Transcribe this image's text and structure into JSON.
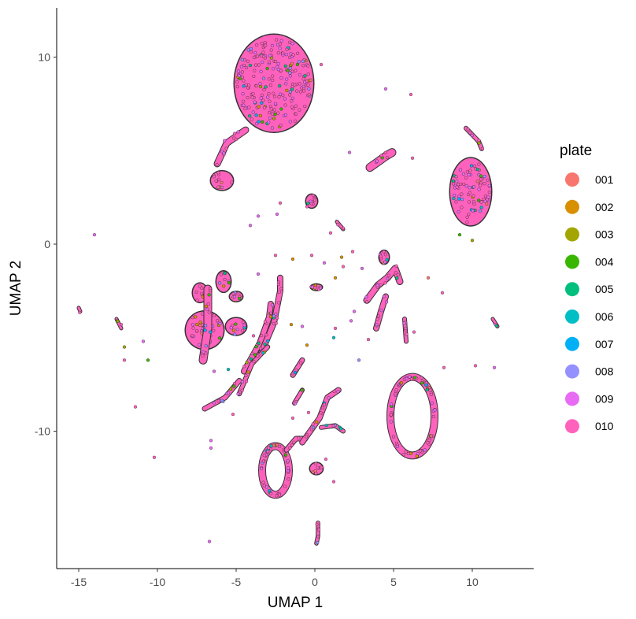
{
  "chart_data": {
    "type": "scatter",
    "title": "",
    "xlabel": "UMAP 1",
    "ylabel": "UMAP 2",
    "xlim": [
      -16.4,
      13.9
    ],
    "ylim": [
      -17.2,
      12.5
    ],
    "x_ticks": [
      -15,
      -10,
      -5,
      0,
      5,
      10
    ],
    "y_ticks": [
      -10,
      0,
      10
    ],
    "x_tick_labels": [
      "-15",
      "-10",
      "-5",
      "0",
      "5",
      "10"
    ],
    "y_tick_labels": [
      "-10",
      "0",
      "10"
    ],
    "grid": false,
    "legend": {
      "title": "plate",
      "placement": "right",
      "entries": [
        {
          "name": "001",
          "color": "#F8766D"
        },
        {
          "name": "002",
          "color": "#D89000"
        },
        {
          "name": "003",
          "color": "#A3A500"
        },
        {
          "name": "004",
          "color": "#39B600"
        },
        {
          "name": "005",
          "color": "#00BF7D"
        },
        {
          "name": "006",
          "color": "#00BFC4"
        },
        {
          "name": "007",
          "color": "#00B0F6"
        },
        {
          "name": "008",
          "color": "#9590FF"
        },
        {
          "name": "009",
          "color": "#E76BF3"
        },
        {
          "name": "010",
          "color": "#FF62BC"
        }
      ]
    },
    "clusters": [
      {
        "shape": "blob",
        "cx": -2.6,
        "cy": 8.6,
        "rx": 2.5,
        "ry": 2.6
      },
      {
        "shape": "blob",
        "cx": -5.9,
        "cy": 3.4,
        "rx": 0.7,
        "ry": 0.5
      },
      {
        "shape": "line",
        "points": [
          [
            -6.2,
            4.3
          ],
          [
            -5.6,
            5.4
          ],
          [
            -4.4,
            6.1
          ]
        ],
        "width": 0.35
      },
      {
        "shape": "blob",
        "cx": -0.2,
        "cy": 2.3,
        "rx": 0.35,
        "ry": 0.35
      },
      {
        "shape": "line",
        "points": [
          [
            3.5,
            4.1
          ],
          [
            4.5,
            4.7
          ],
          [
            4.9,
            4.9
          ]
        ],
        "width": 0.45
      },
      {
        "shape": "blob",
        "cx": 9.9,
        "cy": 2.8,
        "rx": 1.3,
        "ry": 1.8
      },
      {
        "shape": "line",
        "points": [
          [
            9.6,
            6.2
          ],
          [
            10.4,
            5.5
          ],
          [
            10.6,
            5.1
          ]
        ],
        "width": 0.2
      },
      {
        "shape": "blob",
        "cx": -7.3,
        "cy": -2.6,
        "rx": 0.45,
        "ry": 0.5
      },
      {
        "shape": "blob",
        "cx": -7.0,
        "cy": -4.6,
        "rx": 1.2,
        "ry": 1.0
      },
      {
        "shape": "blob",
        "cx": -5.0,
        "cy": -4.4,
        "rx": 0.65,
        "ry": 0.45
      },
      {
        "shape": "line",
        "points": [
          [
            -6.8,
            -2.4
          ],
          [
            -6.8,
            -4.5
          ],
          [
            -7.1,
            -6.2
          ]
        ],
        "width": 0.45
      },
      {
        "shape": "blob",
        "cx": -5.8,
        "cy": -2.0,
        "rx": 0.45,
        "ry": 0.55
      },
      {
        "shape": "blob",
        "cx": -5.0,
        "cy": -2.8,
        "rx": 0.4,
        "ry": 0.25
      },
      {
        "shape": "line",
        "points": [
          [
            -7.0,
            -8.8
          ],
          [
            -5.7,
            -8.2
          ],
          [
            -4.8,
            -7.3
          ]
        ],
        "width": 0.25
      },
      {
        "shape": "line",
        "points": [
          [
            -4.5,
            -6.8
          ],
          [
            -3.5,
            -5.3
          ],
          [
            -2.9,
            -3.9
          ],
          [
            -2.8,
            -3.2
          ]
        ],
        "width": 0.3
      },
      {
        "shape": "line",
        "points": [
          [
            -3.4,
            -5.8
          ],
          [
            -2.6,
            -4.2
          ],
          [
            -2.2,
            -2.5
          ],
          [
            -2.2,
            -1.8
          ]
        ],
        "width": 0.3
      },
      {
        "shape": "line",
        "points": [
          [
            -4.8,
            -8.0
          ],
          [
            -4.0,
            -6.4
          ],
          [
            -3.0,
            -5.5
          ]
        ],
        "width": 0.22
      },
      {
        "shape": "line",
        "points": [
          [
            -1.4,
            -7.0
          ],
          [
            -0.8,
            -6.2
          ]
        ],
        "width": 0.25
      },
      {
        "shape": "line",
        "points": [
          [
            -1.3,
            -8.5
          ],
          [
            -0.8,
            -7.8
          ]
        ],
        "width": 0.2
      },
      {
        "shape": "line",
        "points": [
          [
            3.3,
            -3.0
          ],
          [
            4.0,
            -2.2
          ],
          [
            4.6,
            -1.8
          ],
          [
            5.1,
            -1.3
          ],
          [
            5.4,
            -2.0
          ]
        ],
        "width": 0.35
      },
      {
        "shape": "line",
        "points": [
          [
            3.9,
            -4.5
          ],
          [
            4.2,
            -3.6
          ],
          [
            4.5,
            -2.8
          ]
        ],
        "width": 0.3
      },
      {
        "shape": "blob",
        "cx": 4.4,
        "cy": -0.7,
        "rx": 0.3,
        "ry": 0.35
      },
      {
        "shape": "line",
        "points": [
          [
            5.7,
            -4.0
          ],
          [
            5.8,
            -5.2
          ]
        ],
        "width": 0.2
      },
      {
        "shape": "ring",
        "cx": 6.2,
        "cy": -9.2,
        "rx": 1.4,
        "ry": 2.1
      },
      {
        "shape": "ring",
        "cx": -2.5,
        "cy": -12.1,
        "rx": 0.85,
        "ry": 1.3
      },
      {
        "shape": "line",
        "points": [
          [
            -1.8,
            -11.0
          ],
          [
            -1.2,
            -10.4
          ],
          [
            -0.6,
            -10.4
          ]
        ],
        "width": 0.25
      },
      {
        "shape": "line",
        "points": [
          [
            -0.8,
            -10.6
          ],
          [
            0.3,
            -9.3
          ],
          [
            0.8,
            -8.2
          ],
          [
            1.5,
            -7.8
          ]
        ],
        "width": 0.28
      },
      {
        "shape": "line",
        "points": [
          [
            0.4,
            -9.8
          ],
          [
            1.3,
            -9.7
          ],
          [
            1.8,
            -10.0
          ]
        ],
        "width": 0.2
      },
      {
        "shape": "blob",
        "cx": 0.1,
        "cy": -12.0,
        "rx": 0.4,
        "ry": 0.3
      },
      {
        "shape": "line",
        "points": [
          [
            0.2,
            -14.9
          ],
          [
            0.2,
            -15.6
          ],
          [
            0.1,
            -16.0
          ]
        ],
        "width": 0.18
      },
      {
        "shape": "blob",
        "cx": 0.1,
        "cy": -2.3,
        "rx": 0.35,
        "ry": 0.15
      },
      {
        "shape": "line",
        "points": [
          [
            1.4,
            1.2
          ],
          [
            1.8,
            0.8
          ]
        ],
        "width": 0.12
      },
      {
        "shape": "line",
        "points": [
          [
            -12.6,
            -4.0
          ],
          [
            -12.3,
            -4.5
          ]
        ],
        "width": 0.12
      },
      {
        "shape": "line",
        "points": [
          [
            11.3,
            -4.0
          ],
          [
            11.6,
            -4.4
          ]
        ],
        "width": 0.12
      },
      {
        "shape": "line",
        "points": [
          [
            -15.0,
            -3.4
          ],
          [
            -14.9,
            -3.6
          ]
        ],
        "width": 0.1
      }
    ],
    "outlier_points": [
      [
        -14.0,
        0.5
      ],
      [
        -12.3,
        -4.3
      ],
      [
        -12.1,
        -5.5
      ],
      [
        -12.1,
        -6.2
      ],
      [
        -11.4,
        -8.7
      ],
      [
        -10.9,
        -5.2
      ],
      [
        -10.2,
        -11.4
      ],
      [
        -10.6,
        -6.2
      ],
      [
        -6.6,
        -10.5
      ],
      [
        -6.6,
        -10.9
      ],
      [
        -6.7,
        -15.9
      ],
      [
        -6.4,
        -6.8
      ],
      [
        -5.5,
        -6.7
      ],
      [
        -1.1,
        9.6
      ],
      [
        0.4,
        9.6
      ],
      [
        4.5,
        8.3
      ],
      [
        6.1,
        8.0
      ],
      [
        2.2,
        4.9
      ],
      [
        6.2,
        4.6
      ],
      [
        -2.2,
        2.2
      ],
      [
        -2.4,
        1.6
      ],
      [
        -0.5,
        2.0
      ],
      [
        -3.6,
        1.5
      ],
      [
        -4.1,
        1.0
      ],
      [
        10.0,
        0.2
      ],
      [
        9.2,
        0.5
      ],
      [
        1.7,
        -0.7
      ],
      [
        2.4,
        -0.4
      ],
      [
        3.0,
        -1.3
      ],
      [
        1.3,
        -1.8
      ],
      [
        1.8,
        -1.2
      ],
      [
        -3.6,
        -1.6
      ],
      [
        -2.5,
        -0.6
      ],
      [
        -3.9,
        -4.9
      ],
      [
        -1.5,
        -4.3
      ],
      [
        -0.5,
        -5.4
      ],
      [
        -0.8,
        -4.4
      ],
      [
        1.3,
        -4.5
      ],
      [
        1.2,
        -5.0
      ],
      [
        3.4,
        -5.1
      ],
      [
        2.8,
        -6.2
      ],
      [
        2.3,
        -4.1
      ],
      [
        7.2,
        -1.8
      ],
      [
        8.1,
        -2.6
      ],
      [
        6.3,
        -4.7
      ],
      [
        8.2,
        -6.6
      ],
      [
        10.2,
        -6.5
      ],
      [
        11.4,
        -6.6
      ],
      [
        -1.4,
        -9.3
      ],
      [
        1.2,
        -12.7
      ],
      [
        0.7,
        -11.5
      ],
      [
        -0.4,
        -9.0
      ],
      [
        1.0,
        0.6
      ],
      [
        -0.2,
        -0.6
      ],
      [
        0.6,
        -1.0
      ],
      [
        -1.4,
        -0.8
      ],
      [
        2.5,
        -3.6
      ],
      [
        -5.2,
        -9.1
      ]
    ]
  }
}
